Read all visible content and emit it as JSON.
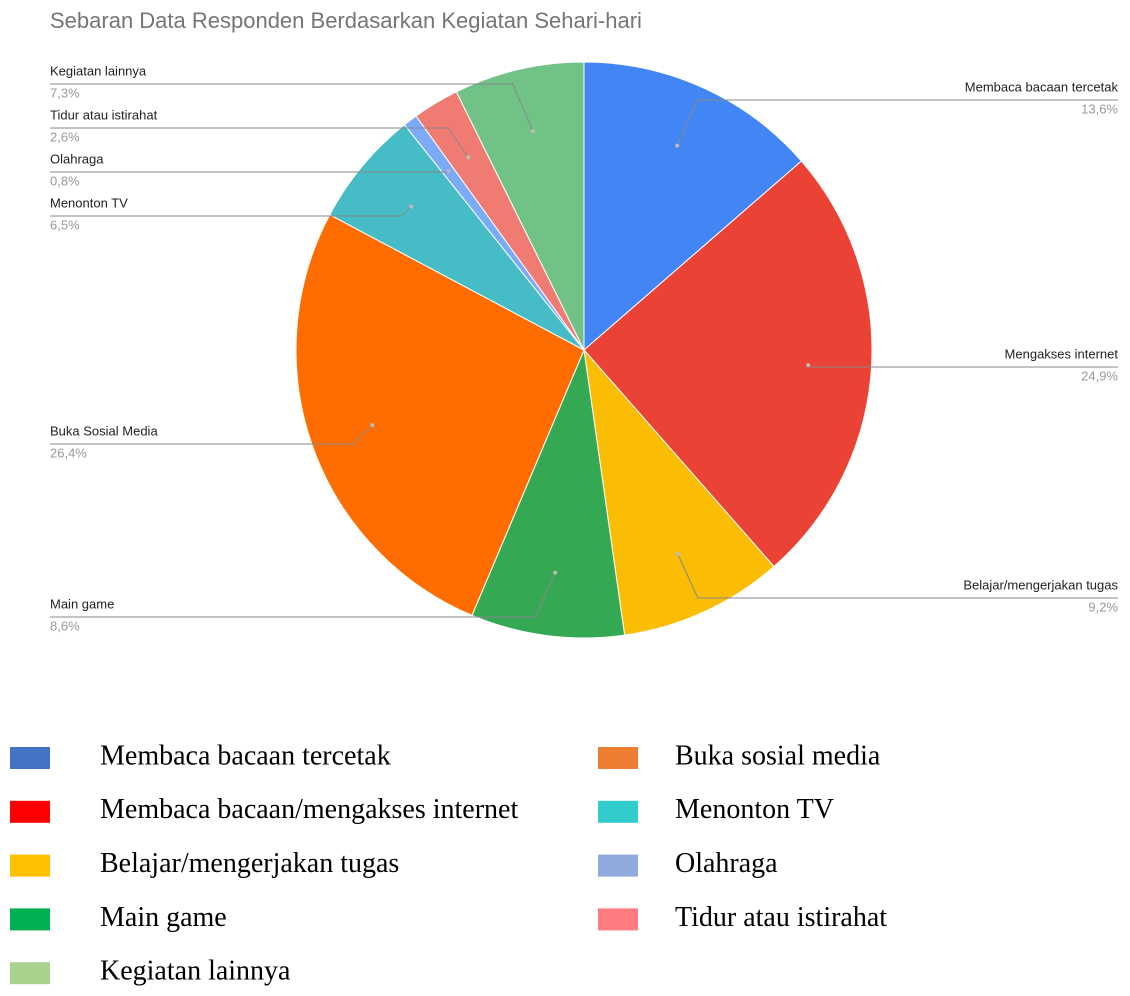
{
  "chart_data": {
    "type": "pie",
    "title": "Sebaran Data Responden Berdasarkan Kegiatan Sehari-hari",
    "categories": [
      "Membaca bacaan tercetak",
      "Mengakses internet",
      "Belajar/mengerjakan tugas",
      "Main game",
      "Buka Sosial Media",
      "Menonton TV",
      "Olahraga",
      "Tidur atau istirahat",
      "Kegiatan lainnya"
    ],
    "values": [
      13.6,
      24.9,
      9.2,
      8.6,
      26.4,
      6.5,
      0.8,
      2.6,
      7.3
    ],
    "value_labels": [
      "13,6%",
      "24,9%",
      "9,2%",
      "8,6%",
      "26,4%",
      "6,5%",
      "0,8%",
      "2,6%",
      "7,3%"
    ],
    "colors": [
      "#4285f4",
      "#ea4335",
      "#fbbc04",
      "#34a853",
      "#ff6d01",
      "#46bdc6",
      "#7baaf7",
      "#f07b72",
      "#71c287"
    ],
    "legend_items": [
      {
        "name": "Membaca bacaan tercetak",
        "color": "#4472c4"
      },
      {
        "name": "Membaca bacaan/mengakses internet",
        "color": "#ff0000"
      },
      {
        "name": "Belajar/mengerjakan tugas",
        "color": "#ffc000"
      },
      {
        "name": "Main game",
        "color": "#00b050"
      },
      {
        "name": "Kegiatan lainnya",
        "color": "#a9d18e"
      },
      {
        "name": "Buka sosial media",
        "color": "#ed7d31"
      },
      {
        "name": "Menonton TV",
        "color": "#33cccc"
      },
      {
        "name": "Olahraga",
        "color": "#8faadc"
      },
      {
        "name": "Tidur atau istirahat",
        "color": "#ff7c80"
      }
    ]
  }
}
